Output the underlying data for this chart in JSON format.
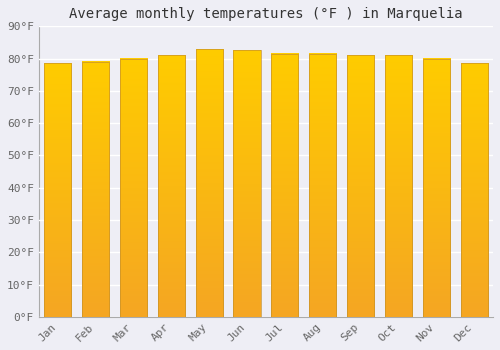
{
  "title": "Average monthly temperatures (°F ) in Marquelia",
  "months": [
    "Jan",
    "Feb",
    "Mar",
    "Apr",
    "May",
    "Jun",
    "Jul",
    "Aug",
    "Sep",
    "Oct",
    "Nov",
    "Dec"
  ],
  "values": [
    78.5,
    79.0,
    80.0,
    81.0,
    83.0,
    82.5,
    81.5,
    81.5,
    81.0,
    81.0,
    80.0,
    78.5
  ],
  "bar_color_top": "#FFCC00",
  "bar_color_bottom": "#F5A623",
  "background_color": "#eeeef5",
  "grid_color": "#ffffff",
  "ytick_labels": [
    "0°F",
    "10°F",
    "20°F",
    "30°F",
    "40°F",
    "50°F",
    "60°F",
    "70°F",
    "80°F",
    "90°F"
  ],
  "ytick_values": [
    0,
    10,
    20,
    30,
    40,
    50,
    60,
    70,
    80,
    90
  ],
  "ylim": [
    0,
    90
  ],
  "title_fontsize": 10,
  "tick_fontsize": 8,
  "bar_edge_color": "#c8922a",
  "bar_edge_width": 0.5
}
